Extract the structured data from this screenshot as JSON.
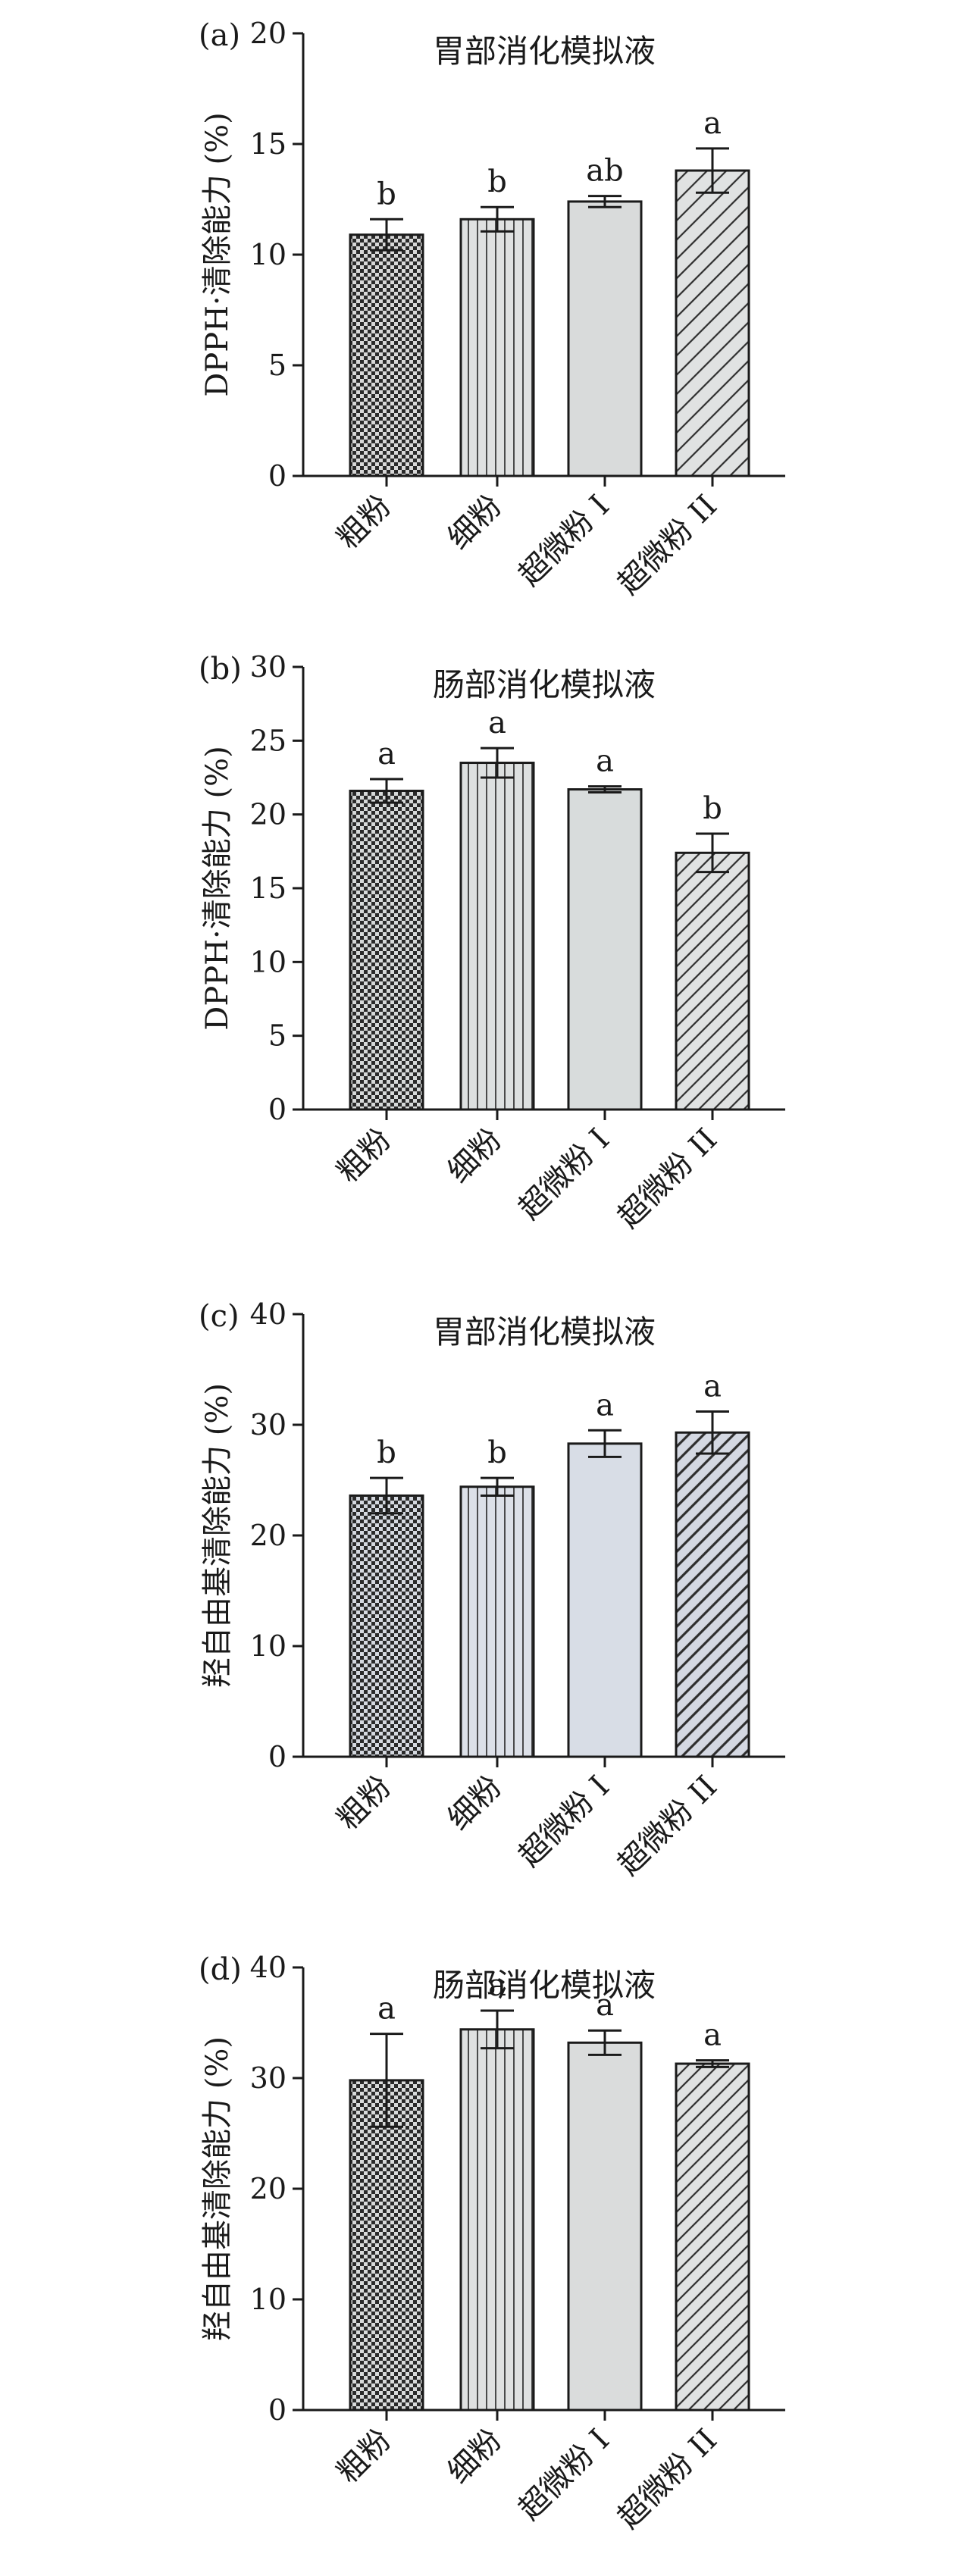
{
  "chart_data": [
    {
      "type": "bar",
      "panel_label": "(a)",
      "title": "胃部消化模拟液",
      "ylabel": "DPPH·清除能力 (%)",
      "xlabel": "",
      "categories": [
        "粗粉",
        "细粉",
        "超微粉 I",
        "超微粉 II"
      ],
      "values": [
        10.9,
        11.6,
        12.4,
        13.8
      ],
      "errors": [
        0.7,
        0.55,
        0.25,
        1.0
      ],
      "significance": [
        "b",
        "b",
        "ab",
        "a"
      ],
      "ylim": [
        0,
        20
      ],
      "yticks": [
        "0",
        "5",
        "10",
        "15",
        "20"
      ],
      "patterns": [
        "checker",
        "vertical",
        "plain",
        "diagonal-wide"
      ],
      "bar_colors": [
        "#d8d8d8",
        "#dfe1e1",
        "#d9dbdb",
        "#e0e2e2"
      ]
    },
    {
      "type": "bar",
      "panel_label": "(b)",
      "title": "肠部消化模拟液",
      "ylabel": "DPPH·清除能力 (%)",
      "xlabel": "",
      "categories": [
        "粗粉",
        "细粉",
        "超微粉 I",
        "超微粉 II"
      ],
      "values": [
        21.6,
        23.5,
        21.7,
        17.4
      ],
      "errors": [
        0.8,
        1.0,
        0.2,
        1.3
      ],
      "significance": [
        "a",
        "a",
        "a",
        "b"
      ],
      "ylim": [
        0,
        30
      ],
      "yticks": [
        "0",
        "5",
        "10",
        "15",
        "20",
        "25",
        "30"
      ],
      "patterns": [
        "checker",
        "vertical",
        "plain",
        "diagonal"
      ],
      "bar_colors": [
        "#d6d9d9",
        "#dde0e0",
        "#d8dcdc",
        "#e0e2e2"
      ]
    },
    {
      "type": "bar",
      "panel_label": "(c)",
      "title": "胃部消化模拟液",
      "ylabel": "羟自由基清除能力 (%)",
      "xlabel": "",
      "categories": [
        "粗粉",
        "细粉",
        "超微粉 I",
        "超微粉 II"
      ],
      "values": [
        23.6,
        24.4,
        28.3,
        29.3
      ],
      "errors": [
        1.6,
        0.8,
        1.2,
        1.9
      ],
      "significance": [
        "b",
        "b",
        "a",
        "a"
      ],
      "ylim": [
        0,
        40
      ],
      "yticks": [
        "0",
        "10",
        "20",
        "30",
        "40"
      ],
      "patterns": [
        "checker",
        "vertical",
        "plain",
        "diagonal-dark"
      ],
      "bar_colors": [
        "#d5d9e0",
        "#dce0e8",
        "#d8dde6",
        "#d4d8e2"
      ]
    },
    {
      "type": "bar",
      "panel_label": "(d)",
      "title": "肠部消化模拟液",
      "ylabel": "羟自由基清除能力 (%)",
      "xlabel": "",
      "categories": [
        "粗粉",
        "细粉",
        "超微粉 I",
        "超微粉 II"
      ],
      "values": [
        29.8,
        34.4,
        33.2,
        31.3
      ],
      "errors": [
        4.2,
        1.7,
        1.1,
        0.3
      ],
      "significance": [
        "a",
        "a",
        "a",
        "a"
      ],
      "ylim": [
        0,
        40
      ],
      "yticks": [
        "0",
        "10",
        "20",
        "30",
        "40"
      ],
      "patterns": [
        "checker",
        "vertical",
        "plain",
        "diagonal"
      ],
      "bar_colors": [
        "#d8dada",
        "#dfe1e1",
        "#dadcdc",
        "#e0e2e2"
      ]
    }
  ]
}
